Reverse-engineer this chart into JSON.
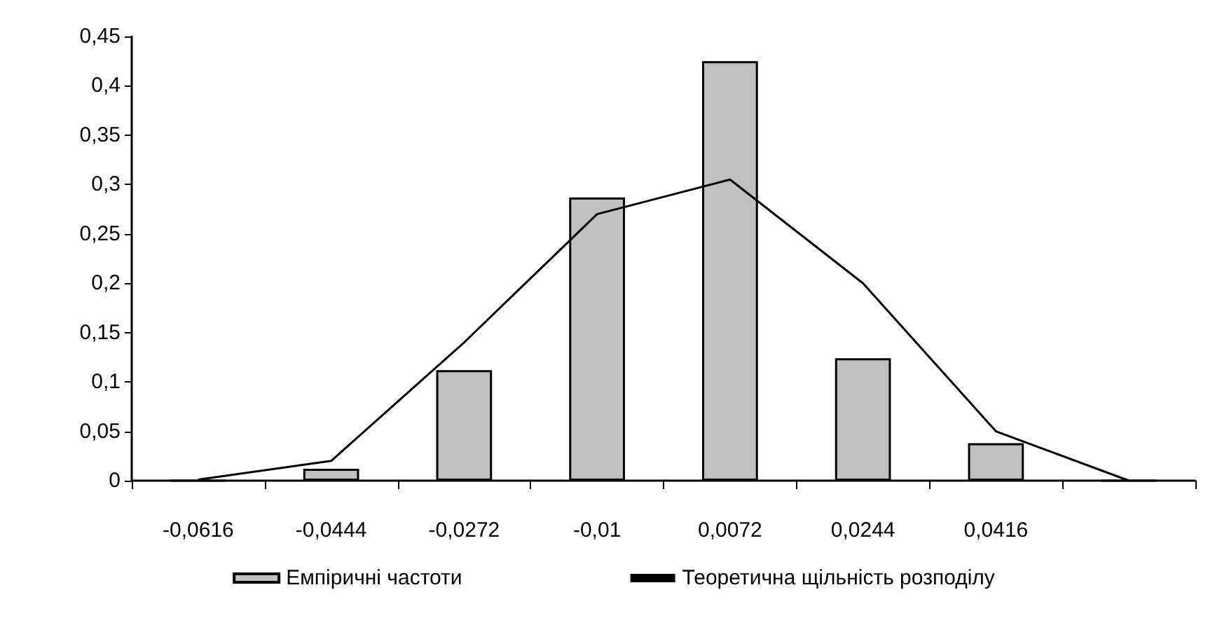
{
  "chart_data": {
    "type": "bar",
    "categories": [
      "-0,0616",
      "-0,0444",
      "-0,0272",
      "-0,01",
      "0,0072",
      "0,0244",
      "0,0416",
      null
    ],
    "series": [
      {
        "name": "Емпіричні частоти",
        "color": "#c0c0c0",
        "values": [
          0,
          0.012,
          0.112,
          0.287,
          0.425,
          0.124,
          0.038,
          0
        ]
      },
      {
        "name": "Теоретична щільність розподілу",
        "type": "line",
        "color": "#000000",
        "values": [
          0.001,
          0.02,
          0.14,
          0.27,
          0.305,
          0.2,
          0.05,
          0
        ]
      }
    ],
    "ylim": [
      0,
      0.45
    ],
    "yticks": [
      {
        "value": 0,
        "label": "0"
      },
      {
        "value": 0.05,
        "label": "0,05"
      },
      {
        "value": 0.1,
        "label": "0,1"
      },
      {
        "value": 0.15,
        "label": "0,15"
      },
      {
        "value": 0.2,
        "label": "0,2"
      },
      {
        "value": 0.25,
        "label": "0,25"
      },
      {
        "value": 0.3,
        "label": "0,3"
      },
      {
        "value": 0.35,
        "label": "0,35"
      },
      {
        "value": 0.4,
        "label": "0,4"
      },
      {
        "value": 0.45,
        "label": "0,45"
      }
    ],
    "grid": false,
    "legend": "bottom"
  }
}
